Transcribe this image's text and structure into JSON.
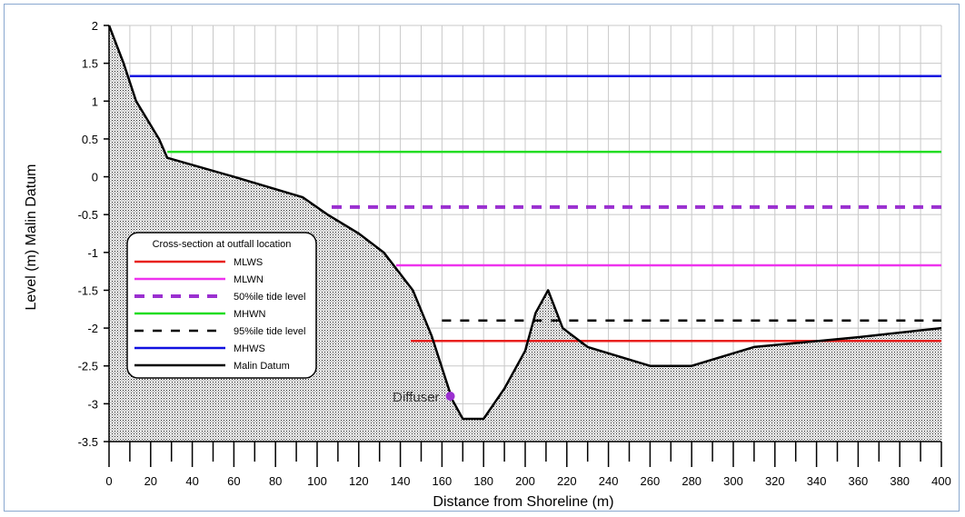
{
  "chart_data": {
    "type": "line",
    "title": "",
    "xlabel": "Distance from Shoreline (m)",
    "ylabel": "Level (m) Malin Datum",
    "xlim": [
      0,
      400
    ],
    "ylim": [
      -3.5,
      2
    ],
    "x_ticks": [
      0,
      20,
      40,
      60,
      80,
      100,
      120,
      140,
      160,
      180,
      200,
      220,
      240,
      260,
      280,
      300,
      320,
      340,
      360,
      380,
      400
    ],
    "y_ticks": [
      2,
      1.5,
      1,
      0.5,
      0,
      -0.5,
      -1,
      -1.5,
      -2,
      -2.5,
      -3,
      -3.5
    ],
    "y_tick_labels": [
      "2",
      "1.5",
      "1",
      "0.5",
      "0",
      "-0.5",
      "-1",
      "-1.5",
      "-2",
      "-2.5",
      "-3",
      "-3.5"
    ],
    "grid": true,
    "legend": {
      "title": "Cross-section at outfall location",
      "placement": "lower-left"
    },
    "series": [
      {
        "name": "MLWS",
        "color": "#e8201e",
        "style": "solid",
        "x": [
          145,
          400
        ],
        "y": [
          -2.17,
          -2.17
        ]
      },
      {
        "name": "MLWN",
        "color": "#ee33ee",
        "style": "solid",
        "x": [
          138,
          400
        ],
        "y": [
          -1.17,
          -1.17
        ]
      },
      {
        "name": "50%ile tide level",
        "color": "#9b30d0",
        "style": "dashed",
        "x": [
          107,
          400
        ],
        "y": [
          -0.4,
          -0.4
        ]
      },
      {
        "name": "MHWN",
        "color": "#22dd22",
        "style": "solid",
        "x": [
          28,
          400
        ],
        "y": [
          0.33,
          0.33
        ]
      },
      {
        "name": "95%ile tide level",
        "color": "#000000",
        "style": "dashed",
        "x": [
          160,
          400
        ],
        "y": [
          -1.9,
          -1.9
        ]
      },
      {
        "name": "MHWS",
        "color": "#1010e0",
        "style": "solid",
        "x": [
          10,
          400
        ],
        "y": [
          1.33,
          1.33
        ]
      },
      {
        "name": "Malin Datum",
        "color": "#000000",
        "style": "bed",
        "x": [
          0,
          7,
          13,
          24,
          28,
          60,
          93,
          105,
          120,
          132,
          146,
          155,
          165,
          170,
          180,
          190,
          200,
          205,
          211,
          218,
          230,
          260,
          280,
          310,
          360,
          400
        ],
        "y": [
          2,
          1.5,
          1,
          0.5,
          0.25,
          0,
          -0.27,
          -0.5,
          -0.75,
          -1,
          -1.5,
          -2.1,
          -2.95,
          -3.2,
          -3.2,
          -2.8,
          -2.3,
          -1.8,
          -1.5,
          -2.0,
          -2.25,
          -2.5,
          -2.5,
          -2.25,
          -2.12,
          -2.0
        ]
      }
    ],
    "annotations": [
      {
        "text": "Diffuser",
        "x": 164,
        "y": -2.9,
        "marker_color": "#9b30d0"
      }
    ]
  }
}
